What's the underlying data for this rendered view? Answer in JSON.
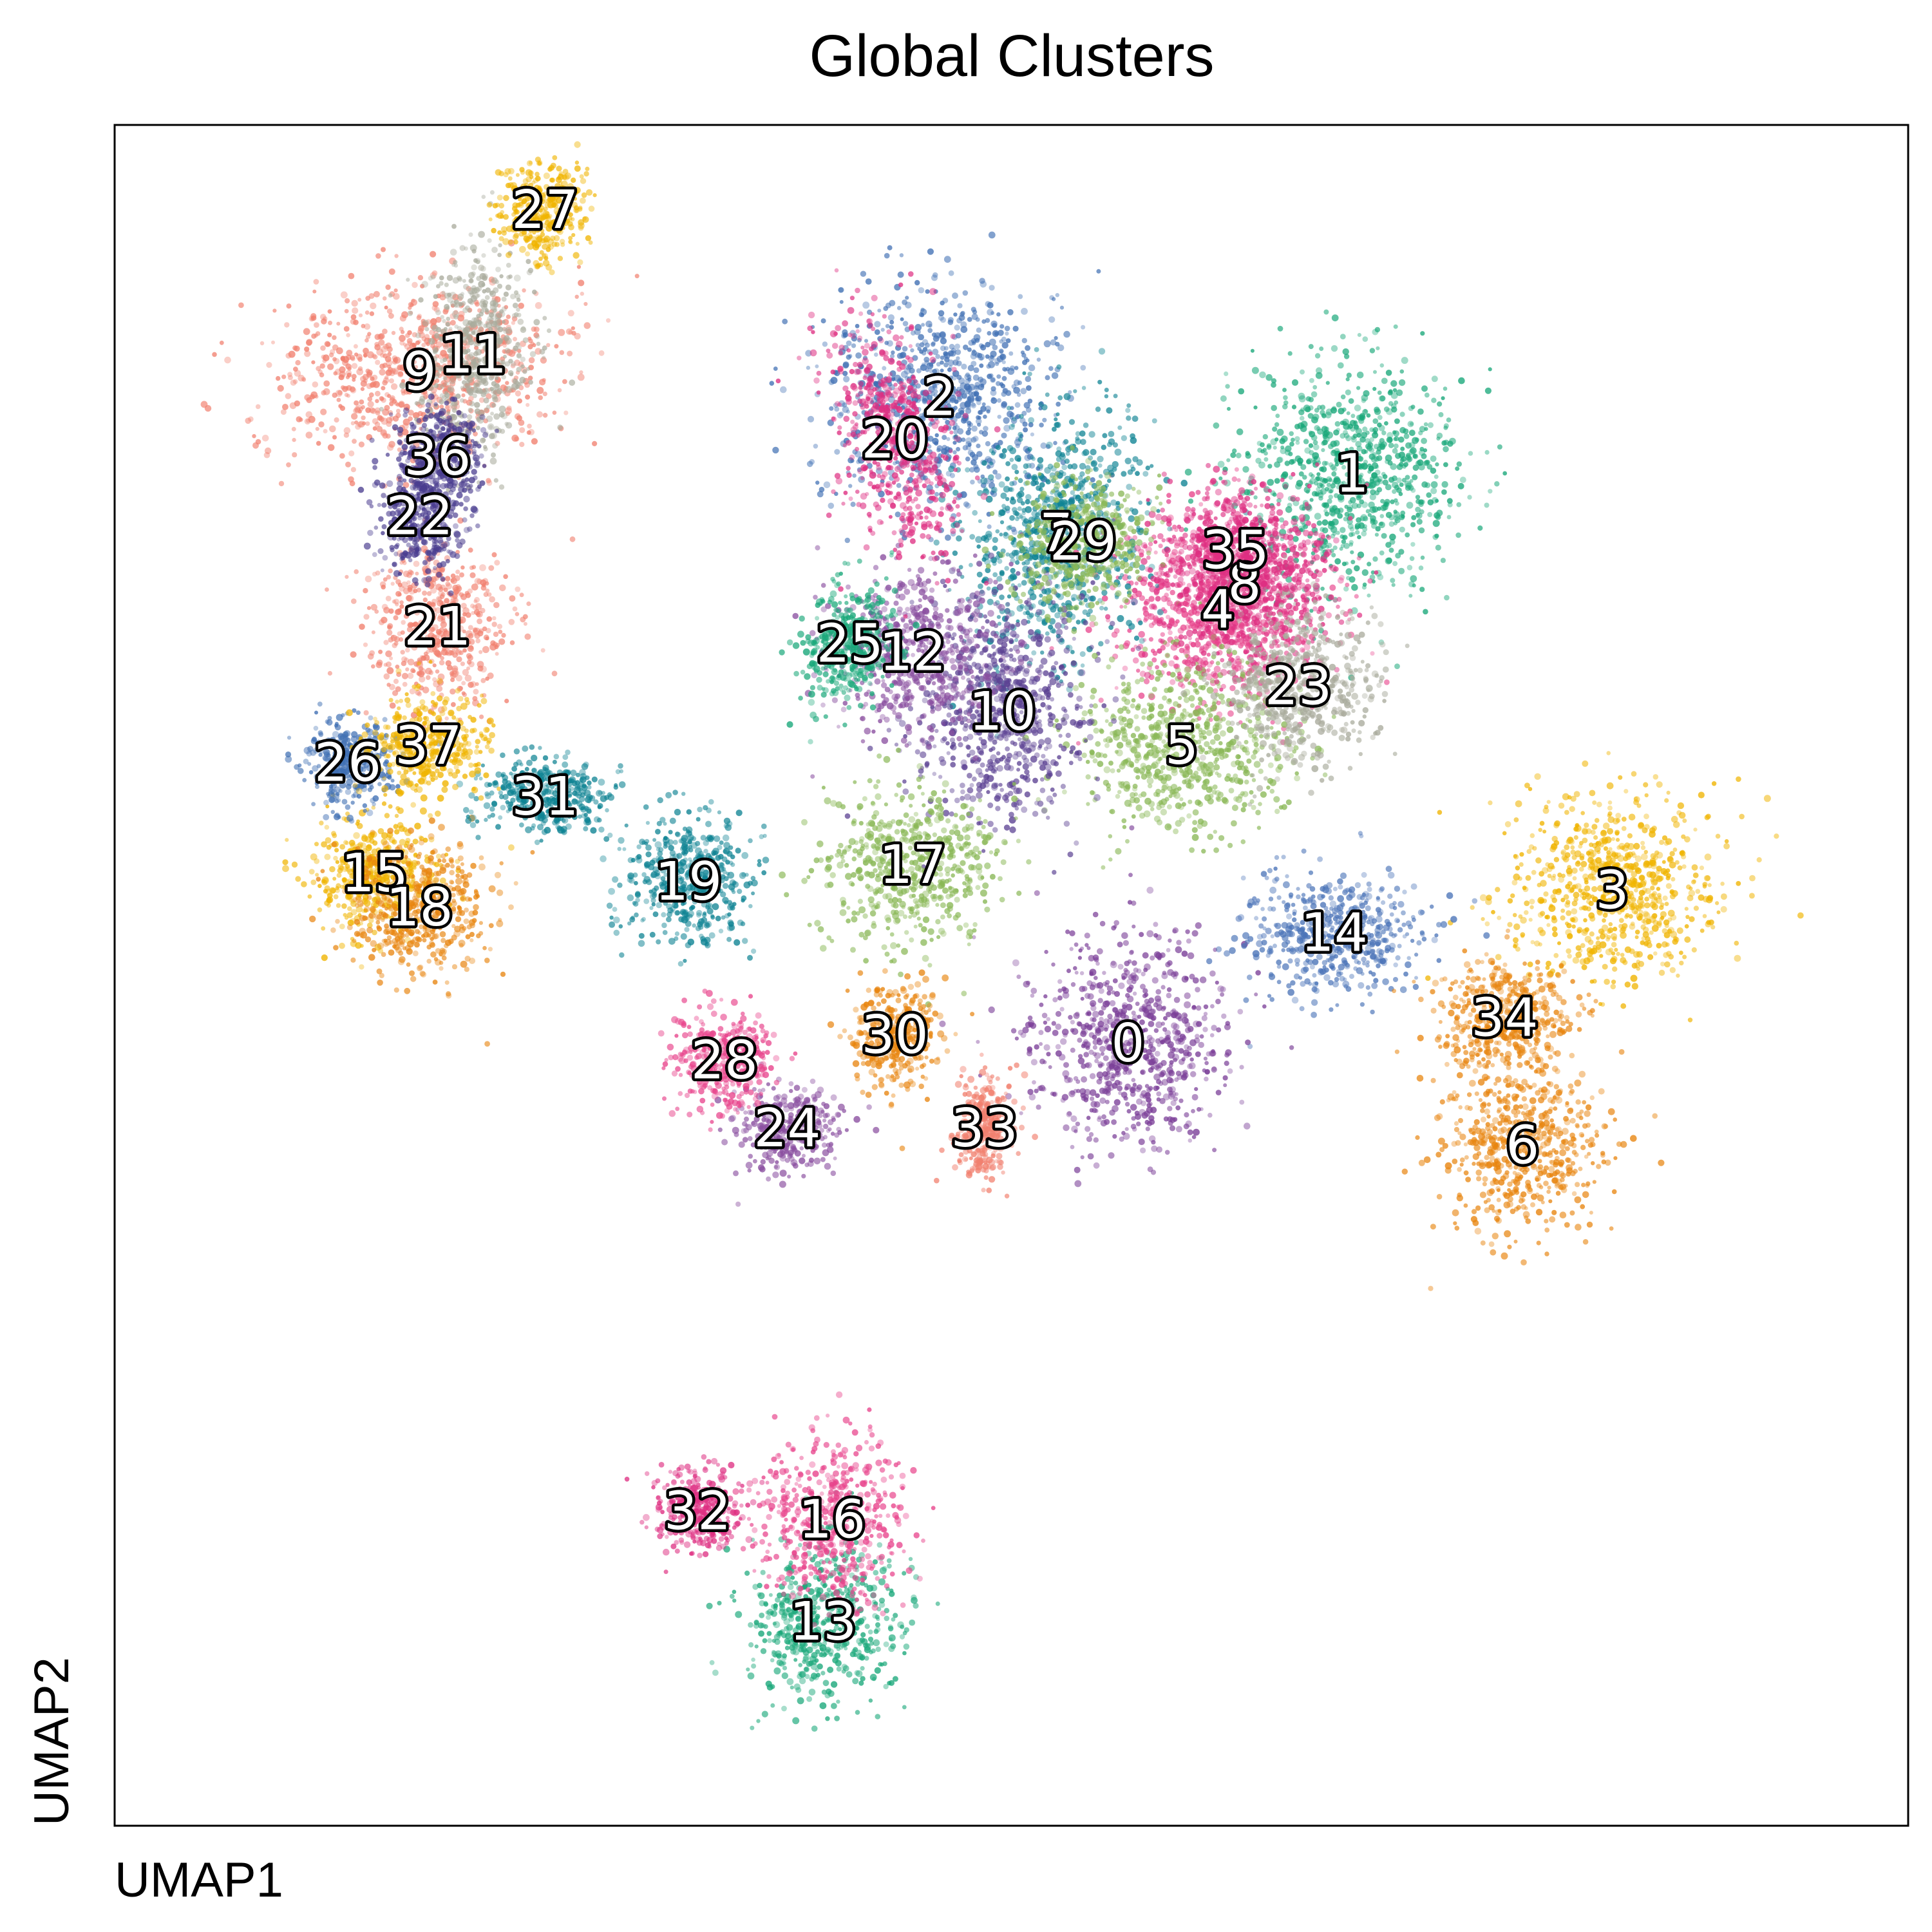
{
  "chart_data": {
    "type": "scatter",
    "title": "Global Clusters",
    "xlabel": "UMAP1",
    "ylabel": "UMAP2",
    "xlim": [
      -10,
      10
    ],
    "ylim": [
      -10,
      10
    ],
    "grid": false,
    "legend": "none (cluster ids annotated on plot)",
    "series": [
      {
        "name": "0",
        "color": "#7b3f98",
        "x": 1.3,
        "y": -0.8
      },
      {
        "name": "1",
        "color": "#1aa87a",
        "x": 3.8,
        "y": 5.9
      },
      {
        "name": "2",
        "color": "#3f6fb3",
        "x": -0.8,
        "y": 6.8
      },
      {
        "name": "3",
        "color": "#f0b400",
        "x": 6.7,
        "y": 1.0
      },
      {
        "name": "4",
        "color": "#e8448c",
        "x": 2.3,
        "y": 4.3
      },
      {
        "name": "5",
        "color": "#8ab857",
        "x": 1.9,
        "y": 2.7
      },
      {
        "name": "6",
        "color": "#e8850f",
        "x": 5.7,
        "y": -2.0
      },
      {
        "name": "7",
        "color": "#0e8393",
        "x": 0.5,
        "y": 5.2
      },
      {
        "name": "8",
        "color": "#de2f82",
        "x": 2.6,
        "y": 4.6
      },
      {
        "name": "9",
        "color": "#f1806f",
        "x": -6.6,
        "y": 7.1
      },
      {
        "name": "10",
        "color": "#5c4293",
        "x": -0.1,
        "y": 3.1
      },
      {
        "name": "11",
        "color": "#a9ab9c",
        "x": -6.0,
        "y": 7.3
      },
      {
        "name": "12",
        "color": "#8a4fa0",
        "x": -1.1,
        "y": 3.8
      },
      {
        "name": "13",
        "color": "#1aa87a",
        "x": -2.1,
        "y": -7.6
      },
      {
        "name": "14",
        "color": "#4b74b8",
        "x": 3.6,
        "y": 0.5
      },
      {
        "name": "15",
        "color": "#f0b400",
        "x": -7.1,
        "y": 1.2
      },
      {
        "name": "16",
        "color": "#e8448c",
        "x": -2.0,
        "y": -6.4
      },
      {
        "name": "17",
        "color": "#8ab857",
        "x": -1.1,
        "y": 1.3
      },
      {
        "name": "18",
        "color": "#e8850f",
        "x": -6.6,
        "y": 0.8
      },
      {
        "name": "19",
        "color": "#0e8393",
        "x": -3.6,
        "y": 1.1
      },
      {
        "name": "20",
        "color": "#de2f82",
        "x": -1.3,
        "y": 6.3
      },
      {
        "name": "21",
        "color": "#f1806f",
        "x": -6.4,
        "y": 4.1
      },
      {
        "name": "22",
        "color": "#4a3d8f",
        "x": -6.6,
        "y": 5.4
      },
      {
        "name": "23",
        "color": "#a9ab9c",
        "x": 3.2,
        "y": 3.4
      },
      {
        "name": "24",
        "color": "#8a4fa0",
        "x": -2.5,
        "y": -1.8
      },
      {
        "name": "25",
        "color": "#1aa87a",
        "x": -1.8,
        "y": 3.9
      },
      {
        "name": "26",
        "color": "#3f6fb3",
        "x": -7.4,
        "y": 2.5
      },
      {
        "name": "27",
        "color": "#f0b400",
        "x": -5.2,
        "y": 9.0
      },
      {
        "name": "28",
        "color": "#e8448c",
        "x": -3.2,
        "y": -1.0
      },
      {
        "name": "29",
        "color": "#8ab857",
        "x": 0.8,
        "y": 5.1
      },
      {
        "name": "30",
        "color": "#e8850f",
        "x": -1.3,
        "y": -0.7
      },
      {
        "name": "31",
        "color": "#0e8393",
        "x": -5.2,
        "y": 2.1
      },
      {
        "name": "32",
        "color": "#de2f82",
        "x": -3.5,
        "y": -6.3
      },
      {
        "name": "33",
        "color": "#f1806f",
        "x": -0.3,
        "y": -1.8
      },
      {
        "name": "34",
        "color": "#e8850f",
        "x": 5.5,
        "y": -0.5
      },
      {
        "name": "35",
        "color": "#de2f82",
        "x": 2.5,
        "y": 5.0
      },
      {
        "name": "36",
        "color": "#4a3d8f",
        "x": -6.4,
        "y": 6.1
      },
      {
        "name": "37",
        "color": "#f0b400",
        "x": -6.5,
        "y": 2.7
      }
    ]
  }
}
